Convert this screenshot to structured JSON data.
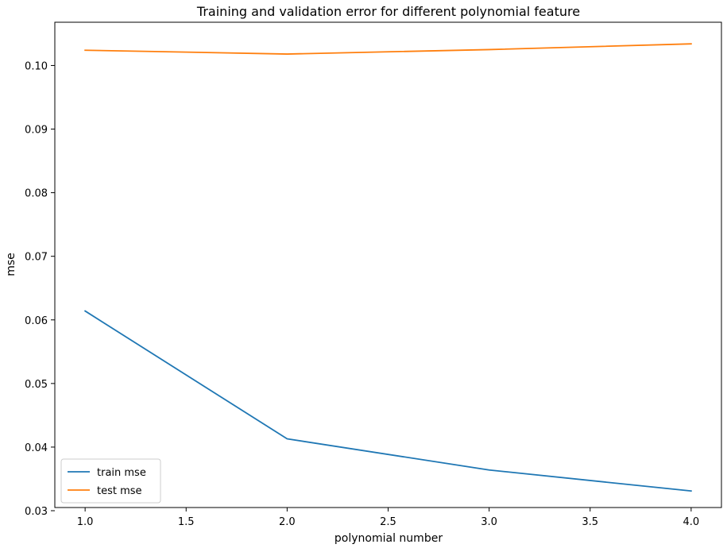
{
  "chart_data": {
    "type": "line",
    "title": "Training and validation error for different polynomial feature",
    "xlabel": "polynomial number",
    "ylabel": "mse",
    "x": [
      1.0,
      2.0,
      3.0,
      4.0
    ],
    "xlim": [
      0.85,
      4.15
    ],
    "ylim": [
      0.0305,
      0.1068
    ],
    "xticks": [
      1.0,
      1.5,
      2.0,
      2.5,
      3.0,
      3.5,
      4.0
    ],
    "xtick_labels": [
      "1.0",
      "1.5",
      "2.0",
      "2.5",
      "3.0",
      "3.5",
      "4.0"
    ],
    "yticks": [
      0.03,
      0.04,
      0.05,
      0.06,
      0.07,
      0.08,
      0.09,
      0.1
    ],
    "ytick_labels": [
      "0.03",
      "0.04",
      "0.05",
      "0.06",
      "0.07",
      "0.08",
      "0.09",
      "0.10"
    ],
    "grid": false,
    "legend_position": "lower-left",
    "series": [
      {
        "name": "train mse",
        "color": "#1f77b4",
        "values": [
          0.0614,
          0.0413,
          0.0364,
          0.0331
        ]
      },
      {
        "name": "test mse",
        "color": "#ff7f0e",
        "values": [
          0.1024,
          0.1018,
          0.1025,
          0.1034
        ]
      }
    ]
  }
}
